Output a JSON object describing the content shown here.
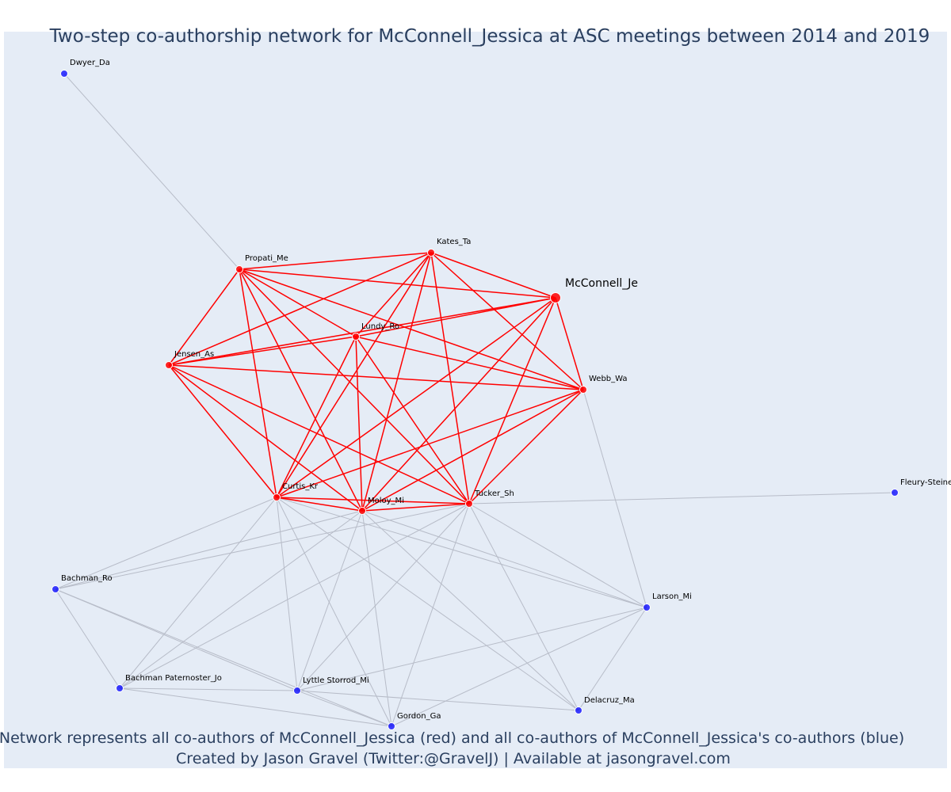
{
  "title": "Two-step co-authorship network for McConnell_Jessica at ASC meetings between 2014 and 2019",
  "caption_line1": "Network represents all co-authors of McConnell_Jessica (red) and all co-authors of McConnell_Jessica's co-authors (blue)",
  "caption_line2": "Created by Jason Gravel (Twitter:@GravelJ) | Available at jasongravel.com",
  "colors": {
    "background": "#e5ecf6",
    "title": "#2a3f5f",
    "red_node": "#ff0000",
    "blue_node": "#0000ff",
    "red_edge": "#ff0000",
    "gray_edge": "#b7bcc8"
  },
  "nodes": [
    {
      "id": "mcconnell",
      "label": "McConnell_Je",
      "group": "focal"
    },
    {
      "id": "kates",
      "label": "Kates_Ta",
      "group": "coauthor"
    },
    {
      "id": "propati",
      "label": "Propati_Me",
      "group": "coauthor"
    },
    {
      "id": "lundy",
      "label": "Lundy_Ro",
      "group": "coauthor"
    },
    {
      "id": "jensen",
      "label": "Jensen_As",
      "group": "coauthor"
    },
    {
      "id": "webb",
      "label": "Webb_Wa",
      "group": "coauthor"
    },
    {
      "id": "curtis",
      "label": "Curtis_Kr",
      "group": "coauthor"
    },
    {
      "id": "moloy",
      "label": "Moloy_Mi",
      "group": "coauthor"
    },
    {
      "id": "tucker",
      "label": "Tucker_Sh",
      "group": "coauthor"
    },
    {
      "id": "dwyer",
      "label": "Dwyer_Da",
      "group": "second"
    },
    {
      "id": "fleury",
      "label": "Fleury-Steiner",
      "group": "second"
    },
    {
      "id": "bachman_ro",
      "label": "Bachman_Ro",
      "group": "second"
    },
    {
      "id": "larson",
      "label": "Larson_Mi",
      "group": "second"
    },
    {
      "id": "bachman_pj",
      "label": "Bachman Paternoster_Jo",
      "group": "second"
    },
    {
      "id": "lyttle",
      "label": "Lyttle Storrod_Mi",
      "group": "second"
    },
    {
      "id": "delacruz",
      "label": "Delacruz_Ma",
      "group": "second"
    },
    {
      "id": "gordon",
      "label": "Gordon_Ga",
      "group": "second"
    }
  ],
  "red_edges": [
    [
      "mcconnell",
      "kates"
    ],
    [
      "mcconnell",
      "propati"
    ],
    [
      "mcconnell",
      "lundy"
    ],
    [
      "mcconnell",
      "jensen"
    ],
    [
      "mcconnell",
      "webb"
    ],
    [
      "mcconnell",
      "curtis"
    ],
    [
      "mcconnell",
      "moloy"
    ],
    [
      "mcconnell",
      "tucker"
    ],
    [
      "kates",
      "propati"
    ],
    [
      "kates",
      "lundy"
    ],
    [
      "kates",
      "jensen"
    ],
    [
      "kates",
      "webb"
    ],
    [
      "kates",
      "curtis"
    ],
    [
      "kates",
      "moloy"
    ],
    [
      "kates",
      "tucker"
    ],
    [
      "propati",
      "lundy"
    ],
    [
      "propati",
      "jensen"
    ],
    [
      "propati",
      "webb"
    ],
    [
      "propati",
      "curtis"
    ],
    [
      "propati",
      "moloy"
    ],
    [
      "propati",
      "tucker"
    ],
    [
      "lundy",
      "jensen"
    ],
    [
      "lundy",
      "webb"
    ],
    [
      "lundy",
      "curtis"
    ],
    [
      "lundy",
      "moloy"
    ],
    [
      "lundy",
      "tucker"
    ],
    [
      "jensen",
      "webb"
    ],
    [
      "jensen",
      "curtis"
    ],
    [
      "jensen",
      "moloy"
    ],
    [
      "jensen",
      "tucker"
    ],
    [
      "webb",
      "curtis"
    ],
    [
      "webb",
      "moloy"
    ],
    [
      "webb",
      "tucker"
    ],
    [
      "curtis",
      "moloy"
    ],
    [
      "curtis",
      "tucker"
    ],
    [
      "moloy",
      "tucker"
    ]
  ],
  "gray_edges": [
    [
      "propati",
      "dwyer"
    ],
    [
      "tucker",
      "fleury"
    ],
    [
      "webb",
      "larson"
    ],
    [
      "curtis",
      "bachman_ro"
    ],
    [
      "moloy",
      "bachman_ro"
    ],
    [
      "tucker",
      "bachman_ro"
    ],
    [
      "curtis",
      "larson"
    ],
    [
      "moloy",
      "larson"
    ],
    [
      "tucker",
      "larson"
    ],
    [
      "curtis",
      "bachman_pj"
    ],
    [
      "moloy",
      "bachman_pj"
    ],
    [
      "tucker",
      "bachman_pj"
    ],
    [
      "curtis",
      "lyttle"
    ],
    [
      "moloy",
      "lyttle"
    ],
    [
      "tucker",
      "lyttle"
    ],
    [
      "curtis",
      "delacruz"
    ],
    [
      "moloy",
      "delacruz"
    ],
    [
      "tucker",
      "delacruz"
    ],
    [
      "curtis",
      "gordon"
    ],
    [
      "moloy",
      "gordon"
    ],
    [
      "tucker",
      "gordon"
    ],
    [
      "bachman_ro",
      "bachman_pj"
    ],
    [
      "bachman_ro",
      "lyttle"
    ],
    [
      "bachman_ro",
      "gordon"
    ],
    [
      "bachman_pj",
      "lyttle"
    ],
    [
      "bachman_pj",
      "gordon"
    ],
    [
      "lyttle",
      "delacruz"
    ],
    [
      "lyttle",
      "gordon"
    ],
    [
      "lyttle",
      "larson"
    ],
    [
      "larson",
      "delacruz"
    ],
    [
      "larson",
      "gordon"
    ]
  ]
}
